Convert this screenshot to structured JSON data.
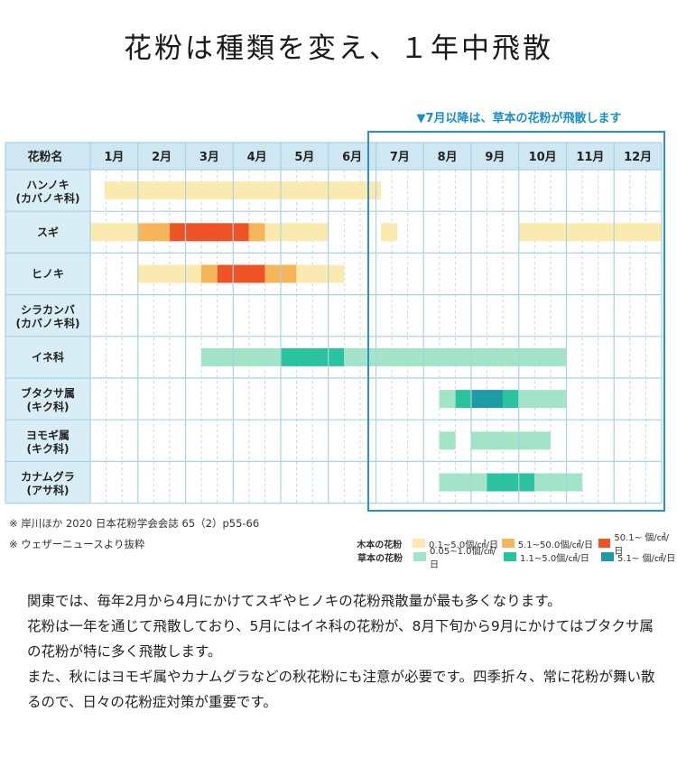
{
  "title": "花粉は種類を変え、１年中飛散",
  "july_note": "▼7月以降は、草本の花粉が飛散します",
  "chart_data": {
    "type": "table",
    "header_label": "花粉名",
    "months": [
      "1月",
      "2月",
      "3月",
      "4月",
      "5月",
      "6月",
      "7月",
      "8月",
      "9月",
      "10月",
      "11月",
      "12月"
    ],
    "rows": [
      {
        "label": "ハンノキ",
        "sublabel": "(カバノキ科)",
        "kind": "tree",
        "segments": [
          [
            0.3,
            6.1,
            1
          ]
        ]
      },
      {
        "label": "スギ",
        "sublabel": "",
        "kind": "tree",
        "segments": [
          [
            0,
            1,
            1
          ],
          [
            1,
            1.67,
            2
          ],
          [
            1.67,
            3.33,
            3
          ],
          [
            3.33,
            3.67,
            2
          ],
          [
            3.67,
            5,
            1
          ],
          [
            6.1,
            6.45,
            1
          ],
          [
            9,
            12,
            1
          ]
        ]
      },
      {
        "label": "ヒノキ",
        "sublabel": "",
        "kind": "tree",
        "segments": [
          [
            1,
            2.33,
            1
          ],
          [
            2.33,
            2.67,
            2
          ],
          [
            2.67,
            3.67,
            3
          ],
          [
            3.67,
            4.33,
            2
          ],
          [
            4.33,
            5.33,
            1
          ]
        ]
      },
      {
        "label": "シラカンバ",
        "sublabel": "(カバノキ科)",
        "kind": "tree",
        "segments": []
      },
      {
        "label": "イネ科",
        "sublabel": "",
        "kind": "grass",
        "segments": [
          [
            2.33,
            4,
            1
          ],
          [
            4,
            5.33,
            2
          ],
          [
            5.33,
            10,
            1
          ]
        ]
      },
      {
        "label": "ブタクサ属",
        "sublabel": "(キク科)",
        "kind": "grass",
        "segments": [
          [
            7.33,
            7.67,
            1
          ],
          [
            7.67,
            8,
            2
          ],
          [
            8,
            8.67,
            3
          ],
          [
            8.67,
            9,
            2
          ],
          [
            9,
            10,
            1
          ]
        ]
      },
      {
        "label": "ヨモギ属",
        "sublabel": "(キク科)",
        "kind": "grass",
        "segments": [
          [
            7.33,
            7.67,
            1
          ],
          [
            8,
            9.67,
            1
          ]
        ]
      },
      {
        "label": "カナムグラ",
        "sublabel": "(アサ科)",
        "kind": "grass",
        "segments": [
          [
            7.33,
            8.33,
            1
          ],
          [
            8.33,
            9.33,
            2
          ],
          [
            9.33,
            10.33,
            1
          ]
        ]
      }
    ],
    "colors": {
      "tree": [
        "#faeab0",
        "#f7b55a",
        "#ee5325"
      ],
      "grass": [
        "#a3e3c8",
        "#2bc2a0",
        "#1c9ba4"
      ]
    }
  },
  "notes": [
    "※ 岸川ほか 2020 日本花粉学会会誌 65（2）p55-66",
    "※ ウェザーニュースより抜粋"
  ],
  "legend": {
    "tree_label": "木本の花粉",
    "tree_items": [
      "0.1~5.0個/㎠/日",
      "5.1~50.0個/㎠/日",
      "50.1~ 個/㎠/日"
    ],
    "grass_label": "草本の花粉",
    "grass_items": [
      "0.05~1.0個/㎠/日",
      "1.1~5.0個/㎠/日",
      "5.1~ 個/㎠/日"
    ]
  },
  "paragraphs": [
    "関東では、毎年2月から4月にかけてスギやヒノキの花粉飛散量が最も多くなります。",
    "花粉は一年を通じて飛散しており、5月にはイネ科の花粉が、8月下旬から9月にかけてはブタクサ属の花粉が特に多く飛散します。",
    "また、秋にはヨモギ属やカナムグラなどの秋花粉にも注意が必要です。四季折々、常に花粉が舞い散るので、日々の花粉症対策が重要です。"
  ]
}
